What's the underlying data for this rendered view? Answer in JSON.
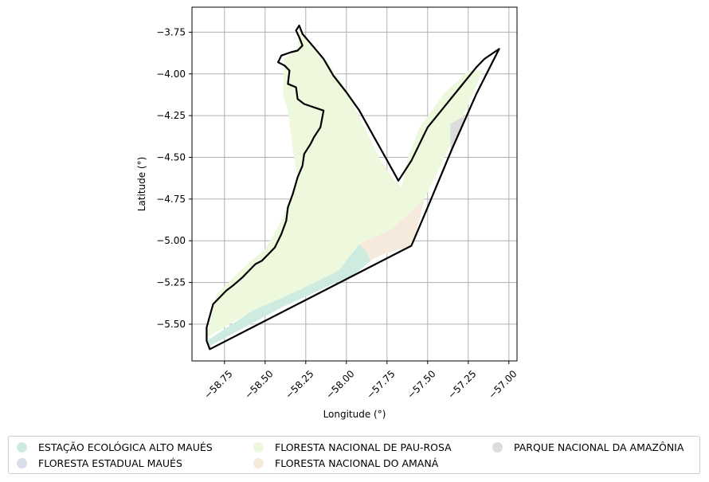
{
  "chart_data": {
    "type": "map",
    "xlabel": "Longitude (°)",
    "ylabel": "Latitude (°)",
    "xlim": [
      -58.95,
      -56.95
    ],
    "ylim": [
      -5.72,
      -3.6
    ],
    "xticks": [
      -58.75,
      -58.5,
      -58.25,
      -58.0,
      -57.75,
      -57.5,
      -57.25,
      -57.0
    ],
    "xtick_labels": [
      "−58.75",
      "−58.50",
      "−58.25",
      "−58.00",
      "−57.75",
      "−57.50",
      "−57.25",
      "−57.00"
    ],
    "yticks": [
      -3.75,
      -4.0,
      -4.25,
      -4.5,
      -4.75,
      -5.0,
      -5.25,
      -5.5
    ],
    "ytick_labels": [
      "−3.75",
      "−4.00",
      "−4.25",
      "−4.50",
      "−4.75",
      "−5.00",
      "−5.25",
      "−5.50"
    ],
    "grid": true,
    "legend_position": "bottom",
    "series": [
      {
        "name": "ESTAÇÃO ECOLÓGICA ALTO MAUÉS",
        "color": "#cdebdf",
        "polygon": [
          [
            -58.86,
            -5.6
          ],
          [
            -58.58,
            -5.42
          ],
          [
            -58.3,
            -5.3
          ],
          [
            -58.05,
            -5.18
          ],
          [
            -57.92,
            -5.02
          ],
          [
            -57.88,
            -5.06
          ],
          [
            -57.85,
            -5.12
          ],
          [
            -57.95,
            -5.2
          ],
          [
            -58.4,
            -5.4
          ],
          [
            -58.84,
            -5.63
          ]
        ]
      },
      {
        "name": "FLORESTA ESTADUAL MAUÉS",
        "color": "#d8deec",
        "polygon": [
          [
            -58.29,
            -3.73
          ],
          [
            -58.1,
            -3.95
          ],
          [
            -58.0,
            -4.1
          ],
          [
            -57.9,
            -4.3
          ],
          [
            -57.8,
            -4.5
          ],
          [
            -57.72,
            -4.62
          ],
          [
            -57.76,
            -4.63
          ],
          [
            -57.85,
            -4.5
          ],
          [
            -57.95,
            -4.34
          ],
          [
            -58.05,
            -4.16
          ],
          [
            -58.15,
            -4.02
          ],
          [
            -58.26,
            -3.88
          ],
          [
            -58.28,
            -3.77
          ]
        ]
      },
      {
        "name": "FLORESTA NACIONAL DE PAU-ROSA",
        "color": "#edf8dc",
        "polygon": [
          [
            -58.29,
            -3.74
          ],
          [
            -58.3,
            -3.84
          ],
          [
            -58.38,
            -3.91
          ],
          [
            -58.39,
            -4.12
          ],
          [
            -58.36,
            -4.22
          ],
          [
            -58.33,
            -4.45
          ],
          [
            -58.3,
            -4.62
          ],
          [
            -58.4,
            -4.88
          ],
          [
            -58.5,
            -5.05
          ],
          [
            -58.62,
            -5.15
          ],
          [
            -58.8,
            -5.32
          ],
          [
            -58.84,
            -5.5
          ],
          [
            -58.86,
            -5.58
          ],
          [
            -58.58,
            -5.42
          ],
          [
            -58.3,
            -5.3
          ],
          [
            -58.05,
            -5.18
          ],
          [
            -57.92,
            -5.02
          ],
          [
            -57.72,
            -4.93
          ],
          [
            -57.52,
            -4.75
          ],
          [
            -57.42,
            -4.55
          ],
          [
            -57.28,
            -4.25
          ],
          [
            -57.16,
            -3.98
          ],
          [
            -57.25,
            -3.98
          ],
          [
            -57.4,
            -4.12
          ],
          [
            -57.55,
            -4.32
          ],
          [
            -57.62,
            -4.5
          ],
          [
            -57.66,
            -4.68
          ],
          [
            -57.72,
            -4.62
          ],
          [
            -57.8,
            -4.5
          ],
          [
            -57.9,
            -4.3
          ],
          [
            -58.0,
            -4.1
          ],
          [
            -58.1,
            -3.95
          ]
        ]
      },
      {
        "name": "FLORESTA NACIONAL DO AMANÁ",
        "color": "#f5eadc",
        "polygon": [
          [
            -57.92,
            -5.02
          ],
          [
            -57.72,
            -4.93
          ],
          [
            -57.52,
            -4.75
          ],
          [
            -57.57,
            -4.95
          ],
          [
            -57.6,
            -5.03
          ],
          [
            -57.8,
            -5.09
          ],
          [
            -57.85,
            -5.12
          ],
          [
            -57.88,
            -5.06
          ]
        ]
      },
      {
        "name": "PARQUE NACIONAL DA AMAZÔNIA",
        "color": "#dcdcdc",
        "polygon": [
          [
            -57.36,
            -4.3
          ],
          [
            -57.27,
            -4.25
          ],
          [
            -57.3,
            -4.35
          ],
          [
            -57.36,
            -4.47
          ]
        ]
      }
    ],
    "boundary": [
      [
        -58.29,
        -3.71
      ],
      [
        -58.27,
        -3.76
      ],
      [
        -58.2,
        -3.84
      ],
      [
        -58.14,
        -3.91
      ],
      [
        -58.08,
        -4.01
      ],
      [
        -58.0,
        -4.11
      ],
      [
        -57.92,
        -4.22
      ],
      [
        -57.84,
        -4.36
      ],
      [
        -57.76,
        -4.5
      ],
      [
        -57.68,
        -4.64
      ],
      [
        -57.6,
        -4.52
      ],
      [
        -57.5,
        -4.32
      ],
      [
        -57.4,
        -4.2
      ],
      [
        -57.3,
        -4.08
      ],
      [
        -57.2,
        -3.96
      ],
      [
        -57.15,
        -3.91
      ],
      [
        -57.06,
        -3.85
      ],
      [
        -57.2,
        -4.12
      ],
      [
        -57.35,
        -4.45
      ],
      [
        -57.5,
        -4.8
      ],
      [
        -57.6,
        -5.03
      ],
      [
        -58.84,
        -5.65
      ],
      [
        -58.86,
        -5.6
      ],
      [
        -58.86,
        -5.52
      ],
      [
        -58.84,
        -5.45
      ],
      [
        -58.82,
        -5.38
      ],
      [
        -58.78,
        -5.34
      ],
      [
        -58.74,
        -5.3
      ],
      [
        -58.7,
        -5.27
      ],
      [
        -58.64,
        -5.22
      ],
      [
        -58.6,
        -5.18
      ],
      [
        -58.56,
        -5.14
      ],
      [
        -58.52,
        -5.12
      ],
      [
        -58.48,
        -5.08
      ],
      [
        -58.44,
        -5.04
      ],
      [
        -58.4,
        -4.96
      ],
      [
        -58.37,
        -4.88
      ],
      [
        -58.36,
        -4.8
      ],
      [
        -58.33,
        -4.72
      ],
      [
        -58.3,
        -4.62
      ],
      [
        -58.27,
        -4.55
      ],
      [
        -58.26,
        -4.48
      ],
      [
        -58.22,
        -4.42
      ],
      [
        -58.2,
        -4.38
      ],
      [
        -58.16,
        -4.32
      ],
      [
        -58.14,
        -4.22
      ],
      [
        -58.2,
        -4.2
      ],
      [
        -58.26,
        -4.18
      ],
      [
        -58.3,
        -4.15
      ],
      [
        -58.31,
        -4.08
      ],
      [
        -58.36,
        -4.06
      ],
      [
        -58.35,
        -3.98
      ],
      [
        -58.38,
        -3.95
      ],
      [
        -58.42,
        -3.93
      ],
      [
        -58.4,
        -3.89
      ],
      [
        -58.34,
        -3.87
      ],
      [
        -58.3,
        -3.86
      ],
      [
        -58.27,
        -3.83
      ],
      [
        -58.29,
        -3.78
      ],
      [
        -58.31,
        -3.74
      ]
    ]
  }
}
